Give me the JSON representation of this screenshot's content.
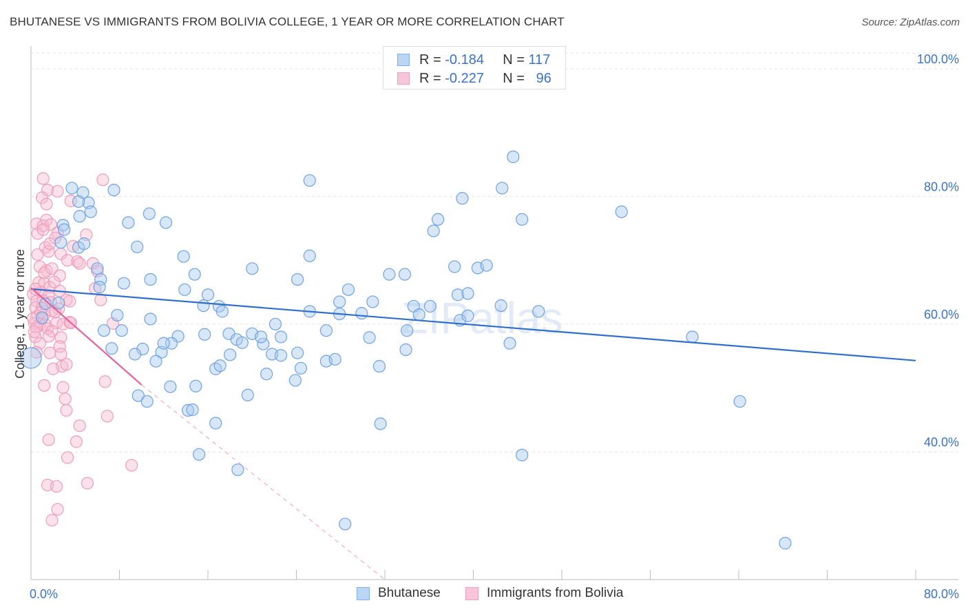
{
  "title": "BHUTANESE VS IMMIGRANTS FROM BOLIVIA COLLEGE, 1 YEAR OR MORE CORRELATION CHART",
  "source": "Source: ZipAtlas.com",
  "watermark": "ZIPatlas",
  "legend_top": {
    "rows": [
      {
        "r_label": "R =",
        "r_value": "-0.184",
        "n_label": "N =",
        "n_value": "117"
      },
      {
        "r_label": "R =",
        "r_value": "-0.227",
        "n_label": "N =",
        "n_value": "96"
      }
    ]
  },
  "colors": {
    "blue": "#7fb0e8",
    "blue_line": "#2e6fcc",
    "pink": "#f0a0bd",
    "pink_line": "#e8609a",
    "tick_text": "#3a72c8"
  },
  "chart_data": {
    "type": "scatter",
    "title": "BHUTANESE VS IMMIGRANTS FROM BOLIVIA COLLEGE, 1 YEAR OR MORE CORRELATION CHART",
    "xlabel": "",
    "ylabel": "College, 1 year or more",
    "xlim": [
      0,
      80
    ],
    "ylim": [
      20,
      103
    ],
    "x_tick_labels": [
      "0.0%",
      "80.0%"
    ],
    "y_tick_values": [
      40,
      60,
      80,
      100
    ],
    "y_tick_labels": [
      "40.0%",
      "60.0%",
      "80.0%",
      "100.0%"
    ],
    "grid": "horizontal dashed",
    "legend_position": "bottom",
    "series": [
      {
        "name": "Bhutanese",
        "r": -0.184,
        "n": 117,
        "trend": {
          "x0": 0,
          "y0": 65.5,
          "x1": 80,
          "y1": 54.3
        },
        "points": [
          [
            3.7,
            81.3
          ],
          [
            4.7,
            80.6
          ],
          [
            7.5,
            81.0
          ],
          [
            5.2,
            79.0
          ],
          [
            4.3,
            79.2
          ],
          [
            2.9,
            75.5
          ],
          [
            3.0,
            74.8
          ],
          [
            5.4,
            77.6
          ],
          [
            4.4,
            76.9
          ],
          [
            8.8,
            75.9
          ],
          [
            10.7,
            77.3
          ],
          [
            12.2,
            75.9
          ],
          [
            2.7,
            72.8
          ],
          [
            4.3,
            72.0
          ],
          [
            4.8,
            72.6
          ],
          [
            9.6,
            72.1
          ],
          [
            6.0,
            68.7
          ],
          [
            13.8,
            70.6
          ],
          [
            10.8,
            67.0
          ],
          [
            14.8,
            67.8
          ],
          [
            6.3,
            67.0
          ],
          [
            8.4,
            66.4
          ],
          [
            6.2,
            65.8
          ],
          [
            13.9,
            65.4
          ],
          [
            16.0,
            64.6
          ],
          [
            15.6,
            62.9
          ],
          [
            17.0,
            62.8
          ],
          [
            17.3,
            62.0
          ],
          [
            2.5,
            63.3
          ],
          [
            1.3,
            63.2
          ],
          [
            1.0,
            61.0
          ],
          [
            7.8,
            61.4
          ],
          [
            10.8,
            60.8
          ],
          [
            6.6,
            59.0
          ],
          [
            8.2,
            59.0
          ],
          [
            13.3,
            58.1
          ],
          [
            15.7,
            58.4
          ],
          [
            17.9,
            58.5
          ],
          [
            20.0,
            58.5
          ],
          [
            18.6,
            57.6
          ],
          [
            19.1,
            57.1
          ],
          [
            21.0,
            56.9
          ],
          [
            22.6,
            58.0
          ],
          [
            26.7,
            59.0
          ],
          [
            22.1,
            60.0
          ],
          [
            12.7,
            57.0
          ],
          [
            7.3,
            56.2
          ],
          [
            10.1,
            56.1
          ],
          [
            9.4,
            55.3
          ],
          [
            11.8,
            55.6
          ],
          [
            18.0,
            55.2
          ],
          [
            21.8,
            55.3
          ],
          [
            22.6,
            55.1
          ],
          [
            24.1,
            55.5
          ],
          [
            11.3,
            54.2
          ],
          [
            16.7,
            53.0
          ],
          [
            24.4,
            53.1
          ],
          [
            26.7,
            54.2
          ],
          [
            27.5,
            54.5
          ],
          [
            31.5,
            53.4
          ],
          [
            21.3,
            52.2
          ],
          [
            23.9,
            51.2
          ],
          [
            12.6,
            50.2
          ],
          [
            9.7,
            48.8
          ],
          [
            10.5,
            47.9
          ],
          [
            19.6,
            48.9
          ],
          [
            14.2,
            46.5
          ],
          [
            14.6,
            46.6
          ],
          [
            16.7,
            44.5
          ],
          [
            15.2,
            39.6
          ],
          [
            18.7,
            37.2
          ],
          [
            31.6,
            44.4
          ],
          [
            28.4,
            28.7
          ],
          [
            25.2,
            82.5
          ],
          [
            25.2,
            70.7
          ],
          [
            24.1,
            67.0
          ],
          [
            20.0,
            68.7
          ],
          [
            28.7,
            65.4
          ],
          [
            25.2,
            62.0
          ],
          [
            27.9,
            61.6
          ],
          [
            29.9,
            61.7
          ],
          [
            30.9,
            63.5
          ],
          [
            32.4,
            67.8
          ],
          [
            33.8,
            67.8
          ],
          [
            34.6,
            62.8
          ],
          [
            35.1,
            61.5
          ],
          [
            36.1,
            62.8
          ],
          [
            34.0,
            59.0
          ],
          [
            30.6,
            57.9
          ],
          [
            33.9,
            56.0
          ],
          [
            36.4,
            74.6
          ],
          [
            36.8,
            76.4
          ],
          [
            38.3,
            69.0
          ],
          [
            38.6,
            64.6
          ],
          [
            39.5,
            64.8
          ],
          [
            38.8,
            60.6
          ],
          [
            39.5,
            61.3
          ],
          [
            40.4,
            68.8
          ],
          [
            41.2,
            69.2
          ],
          [
            39.0,
            79.7
          ],
          [
            42.6,
            81.3
          ],
          [
            43.6,
            86.2
          ],
          [
            44.4,
            76.4
          ],
          [
            43.3,
            57.0
          ],
          [
            42.5,
            62.9
          ],
          [
            45.9,
            62.0
          ],
          [
            53.4,
            77.6
          ],
          [
            59.8,
            58.0
          ],
          [
            64.1,
            47.9
          ],
          [
            68.2,
            25.7
          ],
          [
            44.4,
            39.5
          ],
          [
            0.0,
            54.7
          ],
          [
            20.8,
            58.0
          ],
          [
            17.1,
            53.5
          ],
          [
            14.9,
            50.3
          ],
          [
            27.9,
            63.5
          ],
          [
            12.0,
            57.0
          ]
        ]
      },
      {
        "name": "Immigrants from Bolivia",
        "r": -0.227,
        "n": 96,
        "trend": {
          "x0": 0,
          "y0": 65.7,
          "x1": 10.0,
          "y1": 50.5
        },
        "trend_dashed": {
          "x0": 10.0,
          "y0": 50.5,
          "x1": 32.0,
          "y1": 17.0
        },
        "points": [
          [
            1.1,
            82.8
          ],
          [
            1.5,
            81.0
          ],
          [
            1.0,
            79.8
          ],
          [
            2.4,
            80.8
          ],
          [
            3.6,
            79.3
          ],
          [
            1.4,
            78.8
          ],
          [
            6.5,
            82.6
          ],
          [
            1.4,
            76.3
          ],
          [
            0.5,
            75.7
          ],
          [
            1.1,
            75.4
          ],
          [
            1.8,
            75.6
          ],
          [
            0.6,
            74.2
          ],
          [
            2.4,
            74.3
          ],
          [
            1.1,
            74.8
          ],
          [
            2.2,
            73.5
          ],
          [
            5.0,
            74.0
          ],
          [
            1.3,
            72.0
          ],
          [
            2.7,
            71.0
          ],
          [
            1.6,
            71.4
          ],
          [
            3.3,
            70.0
          ],
          [
            4.2,
            69.8
          ],
          [
            5.6,
            69.5
          ],
          [
            6.0,
            68.3
          ],
          [
            1.4,
            68.4
          ],
          [
            0.8,
            69.0
          ],
          [
            1.2,
            68.0
          ],
          [
            1.9,
            68.7
          ],
          [
            2.6,
            67.6
          ],
          [
            0.7,
            66.5
          ],
          [
            1.2,
            66.4
          ],
          [
            1.7,
            65.8
          ],
          [
            0.9,
            65.0
          ],
          [
            1.6,
            64.5
          ],
          [
            2.6,
            65.2
          ],
          [
            0.2,
            64.7
          ],
          [
            0.5,
            63.6
          ],
          [
            1.1,
            63.7
          ],
          [
            1.8,
            63.4
          ],
          [
            3.2,
            63.8
          ],
          [
            0.4,
            62.6
          ],
          [
            1.0,
            62.5
          ],
          [
            2.5,
            62.4
          ],
          [
            0.6,
            61.3
          ],
          [
            1.2,
            61.5
          ],
          [
            0.3,
            60.1
          ],
          [
            0.8,
            60.0
          ],
          [
            1.3,
            59.9
          ],
          [
            2.3,
            60.2
          ],
          [
            2.9,
            60.0
          ],
          [
            3.5,
            60.3
          ],
          [
            0.5,
            59.5
          ],
          [
            1.5,
            59.3
          ],
          [
            1.9,
            58.9
          ],
          [
            0.4,
            58.0
          ],
          [
            2.7,
            57.9
          ],
          [
            0.8,
            57.0
          ],
          [
            2.6,
            56.5
          ],
          [
            0.5,
            55.6
          ],
          [
            1.7,
            55.5
          ],
          [
            2.7,
            55.3
          ],
          [
            2.8,
            53.4
          ],
          [
            2.0,
            53.0
          ],
          [
            3.2,
            53.7
          ],
          [
            6.7,
            51.0
          ],
          [
            1.2,
            50.4
          ],
          [
            2.9,
            50.1
          ],
          [
            3.1,
            48.3
          ],
          [
            3.2,
            46.5
          ],
          [
            6.9,
            45.6
          ],
          [
            4.4,
            44.1
          ],
          [
            1.6,
            41.9
          ],
          [
            4.1,
            41.6
          ],
          [
            3.3,
            39.1
          ],
          [
            9.1,
            37.9
          ],
          [
            1.5,
            34.8
          ],
          [
            2.3,
            34.6
          ],
          [
            5.1,
            35.1
          ],
          [
            2.4,
            31.0
          ],
          [
            1.9,
            29.3
          ],
          [
            0.2,
            60.9
          ],
          [
            0.3,
            58.8
          ],
          [
            5.8,
            65.6
          ],
          [
            6.3,
            63.8
          ],
          [
            7.4,
            60.1
          ],
          [
            2.1,
            66.6
          ],
          [
            3.5,
            63.6
          ],
          [
            1.9,
            62.1
          ],
          [
            3.6,
            60.2
          ],
          [
            0.4,
            65.5
          ],
          [
            0.9,
            61.8
          ],
          [
            1.6,
            58.1
          ],
          [
            2.2,
            61.9
          ],
          [
            4.4,
            69.5
          ],
          [
            0.6,
            70.9
          ],
          [
            1.7,
            72.6
          ],
          [
            3.8,
            72.2
          ]
        ]
      }
    ]
  },
  "legend_bottom": [
    {
      "label": "Bhutanese"
    },
    {
      "label": "Immigrants from Bolivia"
    }
  ]
}
